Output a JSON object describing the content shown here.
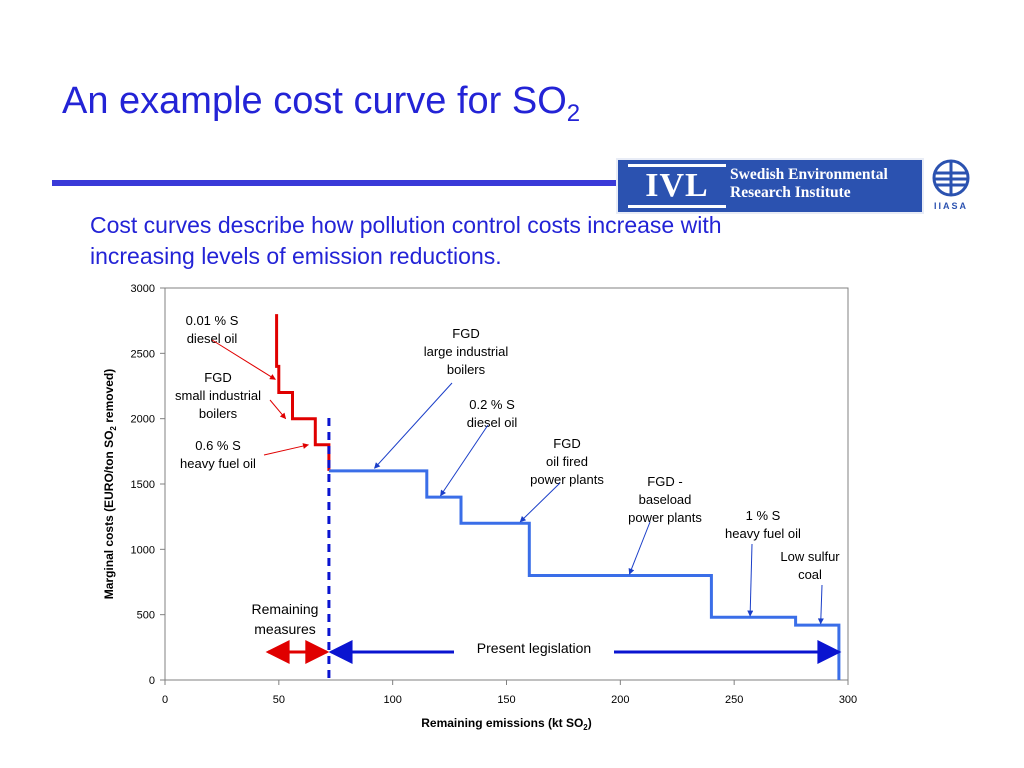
{
  "title": {
    "main": "An example cost curve for SO",
    "sub": "2"
  },
  "subtitle": "Cost curves describe how pollution control costs increase with increasing levels of emission reductions.",
  "logos": {
    "ivl_mark": "IVL",
    "ivl_name_line1": "Swedish Environmental",
    "ivl_name_line2": "Research Institute",
    "iiasa": "IIASA"
  },
  "colors": {
    "title": "#2323d6",
    "rule": "#3a3ad8",
    "red_series": "#e00000",
    "blue_series": "#3a6ee8",
    "legislation_arrow": "#0a14d0",
    "logo_bg": "#2b52b0"
  },
  "chart_data": {
    "type": "line",
    "xlabel": {
      "text": "Remaining emissions (kt SO",
      "sub": "2",
      "after": ")"
    },
    "ylabel": {
      "text": "Marginal costs (EURO/ton SO",
      "sub": "2",
      "after": " removed)"
    },
    "xlim": [
      0,
      300
    ],
    "ylim": [
      0,
      3000
    ],
    "xticks": [
      0,
      50,
      100,
      150,
      200,
      250,
      300
    ],
    "yticks": [
      0,
      500,
      1000,
      1500,
      2000,
      2500,
      3000
    ],
    "grid": false,
    "series": [
      {
        "color": "#e00000",
        "x": [
          49,
          49,
          50,
          50,
          56,
          56,
          66,
          66,
          72,
          72
        ],
        "y": [
          2800,
          2400,
          2400,
          2200,
          2200,
          2000,
          2000,
          1800,
          1800,
          1600
        ]
      },
      {
        "color": "#3a6ee8",
        "x": [
          72,
          115,
          115,
          130,
          130,
          160,
          160,
          240,
          240,
          277,
          277,
          296,
          296
        ],
        "y": [
          1600,
          1600,
          1400,
          1400,
          1200,
          1200,
          800,
          800,
          480,
          480,
          420,
          420,
          0
        ]
      }
    ],
    "divider_x": 72,
    "annotations": [
      {
        "lines": [
          "0.01 % S",
          "diesel oil"
        ],
        "color": "#e00000",
        "target": [
          48.5,
          2300
        ]
      },
      {
        "lines": [
          "FGD",
          "small industrial",
          "boilers"
        ],
        "color": "#e00000",
        "target": [
          53,
          2000
        ]
      },
      {
        "lines": [
          "0.6 % S",
          "heavy fuel oil"
        ],
        "color": "#e00000",
        "target": [
          63,
          1800
        ]
      },
      {
        "lines": [
          "FGD",
          "large industrial",
          "boilers"
        ],
        "color": "#3a6ee8",
        "target": [
          92,
          1620
        ]
      },
      {
        "lines": [
          "0.2 % S",
          "diesel oil"
        ],
        "color": "#3a6ee8",
        "target": [
          121,
          1410
        ]
      },
      {
        "lines": [
          "FGD",
          "oil fired",
          "power plants"
        ],
        "color": "#3a6ee8",
        "target": [
          156,
          1210
        ]
      },
      {
        "lines": [
          "FGD -",
          "baseload",
          "power plants"
        ],
        "color": "#3a6ee8",
        "target": [
          204,
          810
        ]
      },
      {
        "lines": [
          "1 % S",
          "heavy fuel oil"
        ],
        "color": "#3a6ee8",
        "target": [
          257,
          490
        ]
      },
      {
        "lines": [
          "Low sulfur",
          "coal"
        ],
        "color": "#3a6ee8",
        "target": [
          288,
          430
        ]
      }
    ],
    "remaining_measures": [
      "Remaining",
      "measures"
    ],
    "present_legislation": "Present legislation"
  }
}
